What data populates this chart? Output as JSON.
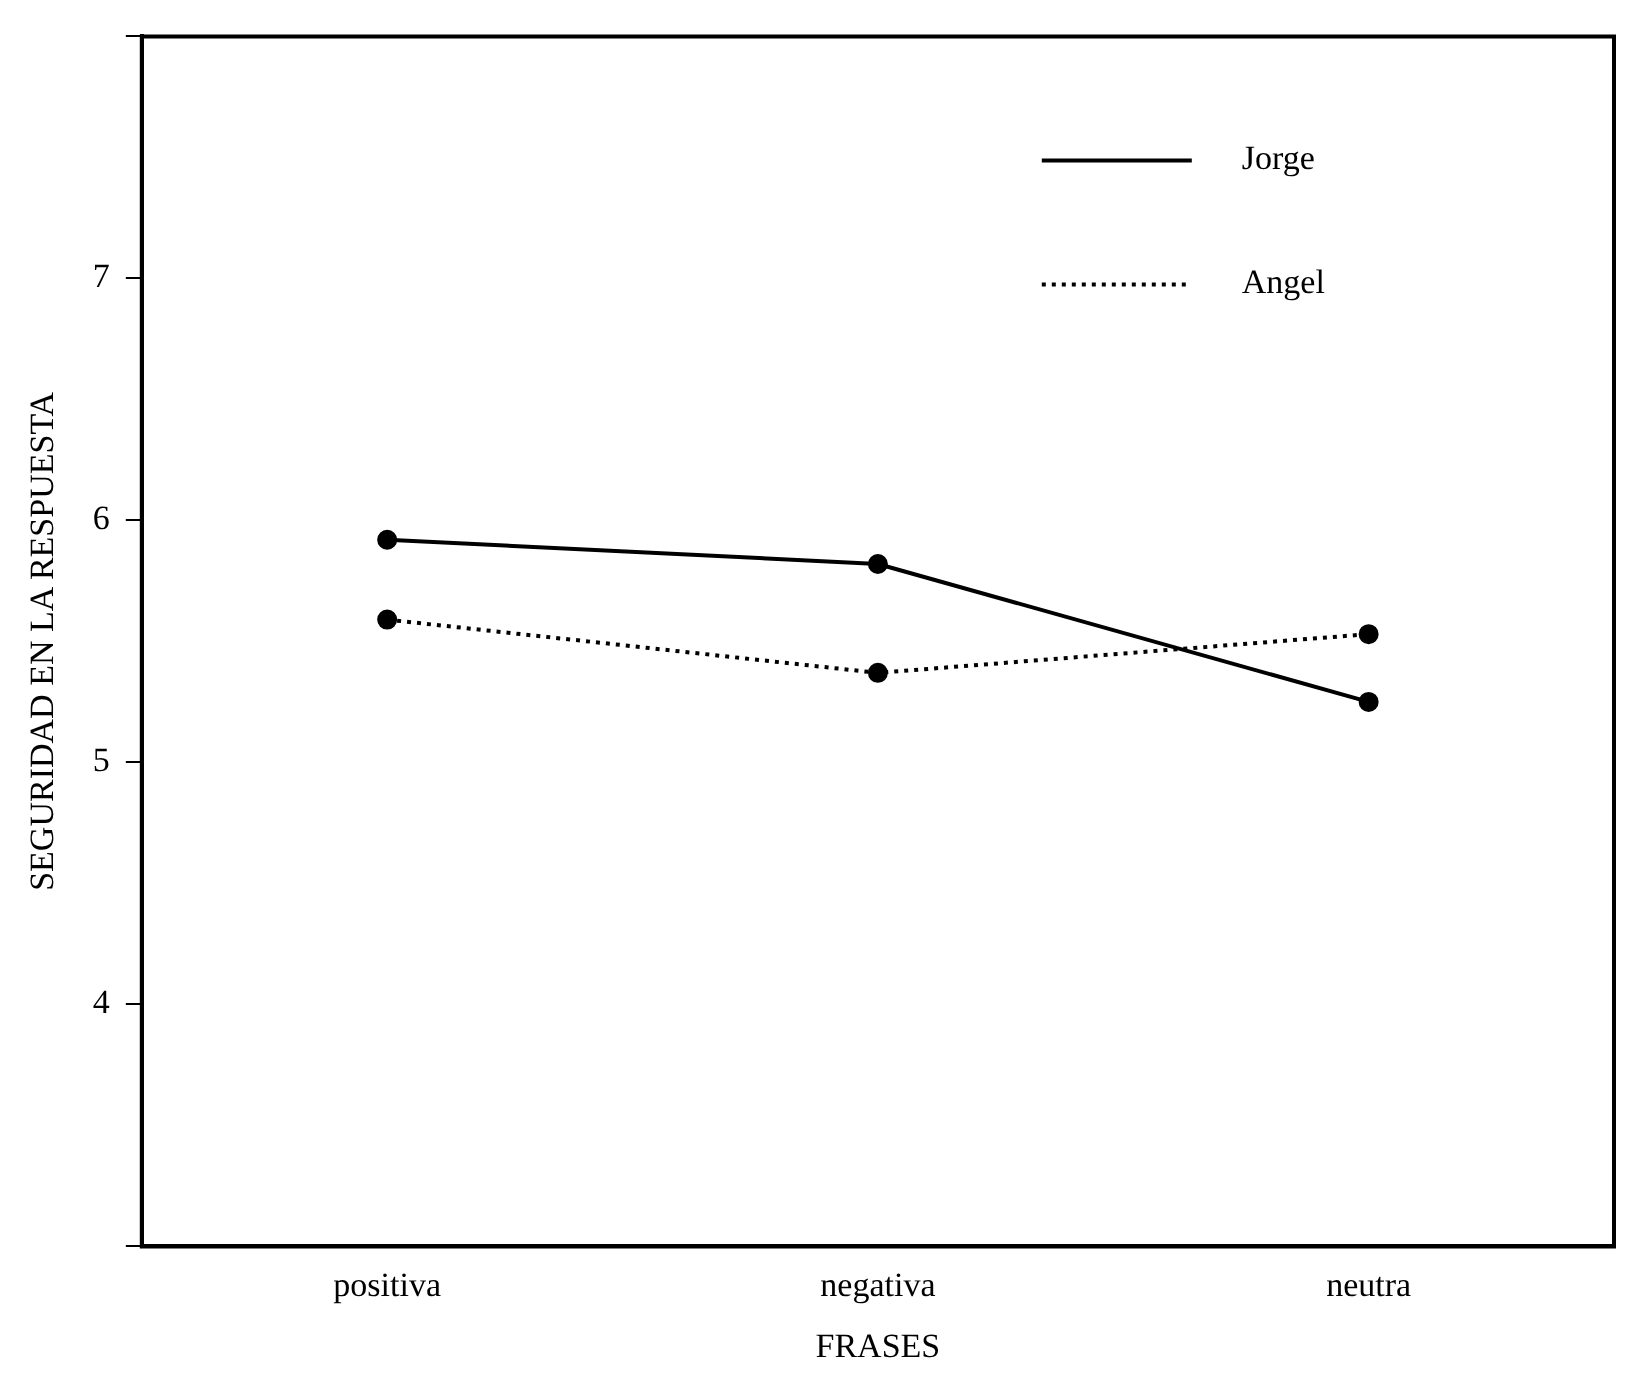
{
  "chart_data": {
    "type": "line",
    "xlabel": "FRASES",
    "ylabel": "SEGURIDAD EN LA RESPUESTA",
    "categories": [
      "positiva",
      "negativa",
      "neutra"
    ],
    "series": [
      {
        "name": "Jorge",
        "color": "#000000",
        "line_style": "solid",
        "values": [
          5.92,
          5.82,
          5.25
        ]
      },
      {
        "name": "Angel",
        "color": "#000000",
        "line_style": "dotted",
        "values": [
          5.59,
          5.37,
          5.53
        ]
      }
    ],
    "ylim": [
      3,
      8
    ],
    "yticks": [
      {
        "value": 3,
        "label": null
      },
      4,
      5,
      6,
      7,
      {
        "value": 8,
        "label": null
      }
    ],
    "grid": false,
    "legend": "top right",
    "marker": "circle"
  }
}
